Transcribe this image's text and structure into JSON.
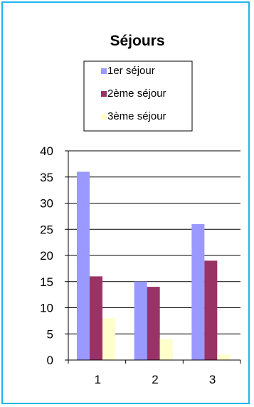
{
  "chart_data": {
    "type": "bar",
    "title": "Séjours",
    "categories": [
      "1",
      "2",
      "3"
    ],
    "series": [
      {
        "name": "1er séjour",
        "values": [
          36,
          15,
          26
        ],
        "color": "#9999ff"
      },
      {
        "name": "2ème séjour",
        "values": [
          16,
          14,
          19
        ],
        "color": "#993366"
      },
      {
        "name": "3ème séjour",
        "values": [
          8,
          4,
          1
        ],
        "color": "#ffffcc"
      }
    ],
    "ylim": [
      0,
      40
    ],
    "yticks": [
      0,
      5,
      10,
      15,
      20,
      25,
      30,
      35,
      40
    ],
    "grid": true,
    "legend_position": "top",
    "frame_color": "#1fb3e8"
  }
}
